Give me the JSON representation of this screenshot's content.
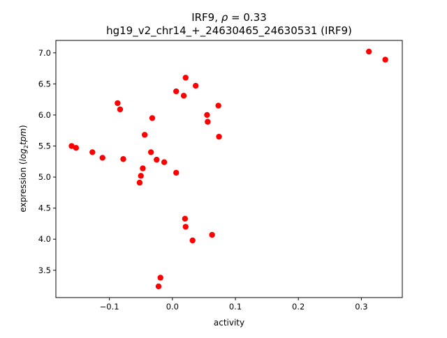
{
  "chart_data": {
    "type": "scatter",
    "title_line1_prefix": "IRF9, ",
    "title_line1_rho": "ρ",
    "title_line1_suffix": " = 0.33",
    "title_line2": "hg19_v2_chr14_+_24630465_24630531 (IRF9)",
    "xlabel": "activity",
    "ylabel_prefix": "expression (",
    "ylabel_log": "log",
    "ylabel_sub": "2",
    "ylabel_tpm": "tpm",
    "ylabel_suffix": ")",
    "xlim": [
      -0.185,
      0.365
    ],
    "ylim": [
      3.06,
      7.2
    ],
    "xticks": [
      -0.1,
      0.0,
      0.1,
      0.2,
      0.3
    ],
    "xtick_labels": [
      "−0.1",
      "0.0",
      "0.1",
      "0.2",
      "0.3"
    ],
    "yticks": [
      3.5,
      4.0,
      4.5,
      5.0,
      5.5,
      6.0,
      6.5,
      7.0
    ],
    "ytick_labels": [
      "3.5",
      "4.0",
      "4.5",
      "5.0",
      "5.5",
      "6.0",
      "6.5",
      "7.0"
    ],
    "marker_color": "#ff0000",
    "grid": false,
    "points": [
      {
        "x": -0.16,
        "y": 5.5
      },
      {
        "x": -0.153,
        "y": 5.47
      },
      {
        "x": -0.127,
        "y": 5.4
      },
      {
        "x": -0.111,
        "y": 5.31
      },
      {
        "x": -0.087,
        "y": 6.19
      },
      {
        "x": -0.083,
        "y": 6.09
      },
      {
        "x": -0.078,
        "y": 5.29
      },
      {
        "x": -0.052,
        "y": 4.91
      },
      {
        "x": -0.05,
        "y": 5.02
      },
      {
        "x": -0.047,
        "y": 5.14
      },
      {
        "x": -0.044,
        "y": 5.68
      },
      {
        "x": -0.034,
        "y": 5.4
      },
      {
        "x": -0.032,
        "y": 5.95
      },
      {
        "x": -0.025,
        "y": 5.28
      },
      {
        "x": -0.022,
        "y": 3.24
      },
      {
        "x": -0.019,
        "y": 3.38
      },
      {
        "x": -0.013,
        "y": 5.24
      },
      {
        "x": 0.006,
        "y": 6.38
      },
      {
        "x": 0.006,
        "y": 5.07
      },
      {
        "x": 0.018,
        "y": 6.31
      },
      {
        "x": 0.02,
        "y": 4.33
      },
      {
        "x": 0.021,
        "y": 6.6
      },
      {
        "x": 0.021,
        "y": 4.2
      },
      {
        "x": 0.032,
        "y": 3.98
      },
      {
        "x": 0.037,
        "y": 6.47
      },
      {
        "x": 0.055,
        "y": 6.0
      },
      {
        "x": 0.056,
        "y": 5.89
      },
      {
        "x": 0.063,
        "y": 4.07
      },
      {
        "x": 0.073,
        "y": 6.15
      },
      {
        "x": 0.074,
        "y": 5.65
      },
      {
        "x": 0.312,
        "y": 7.02
      },
      {
        "x": 0.338,
        "y": 6.89
      }
    ]
  }
}
